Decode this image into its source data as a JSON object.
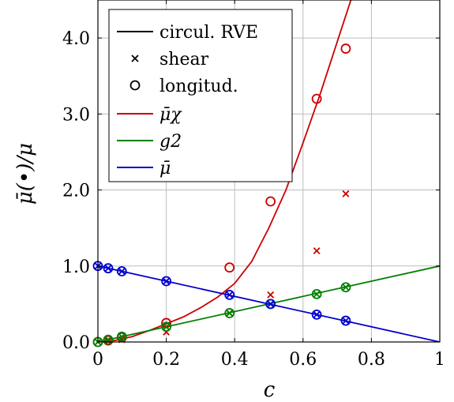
{
  "chart_data": {
    "type": "line",
    "xlabel": "c",
    "ylabel": "μ̄(•)/μ",
    "xlim": [
      0,
      1
    ],
    "ylim": [
      0,
      4.5
    ],
    "xticks": [
      {
        "value": 0,
        "label": "0"
      },
      {
        "value": 0.2,
        "label": "0.2"
      },
      {
        "value": 0.4,
        "label": "0.4"
      },
      {
        "value": 0.6,
        "label": "0.6"
      },
      {
        "value": 0.8,
        "label": "0.8"
      },
      {
        "value": 1,
        "label": "1"
      }
    ],
    "yticks": [
      {
        "value": 0,
        "label": "0.0"
      },
      {
        "value": 1,
        "label": "1.0"
      },
      {
        "value": 2,
        "label": "2.0"
      },
      {
        "value": 3,
        "label": "3.0"
      },
      {
        "value": 4,
        "label": "4.0"
      }
    ],
    "grid": true,
    "legend_position": "top-left",
    "legend": [
      {
        "label": "circul. RVE",
        "marker": "line",
        "color": "#000000"
      },
      {
        "label": "shear",
        "marker": "cross",
        "color": "#000000"
      },
      {
        "label": "longitud.",
        "marker": "circle",
        "color": "#000000"
      },
      {
        "label": "μ̄χ",
        "marker": "line",
        "color": "#cc0000"
      },
      {
        "label": "g2",
        "marker": "line",
        "color": "#008000"
      },
      {
        "label": "μ̄",
        "marker": "line",
        "color": "#0000cc"
      }
    ],
    "series": [
      {
        "key": "mu_chi",
        "name": "μ̄χ",
        "color": "#cc0000",
        "x": [
          0,
          0.05,
          0.1,
          0.15,
          0.2,
          0.25,
          0.3,
          0.35,
          0.4,
          0.45,
          0.5,
          0.55,
          0.6,
          0.65,
          0.7,
          0.74
        ],
        "y": [
          0,
          0.02,
          0.07,
          0.15,
          0.24,
          0.33,
          0.45,
          0.59,
          0.77,
          1.06,
          1.5,
          2.0,
          2.62,
          3.26,
          3.95,
          4.5
        ],
        "shear": {
          "x": [
            0,
            0.03,
            0.07,
            0.2,
            0.385,
            0.505,
            0.64,
            0.725
          ],
          "y": [
            0,
            0.01,
            0.03,
            0.13,
            0.38,
            0.62,
            1.2,
            1.95
          ]
        },
        "longitudinal": {
          "x": [
            0,
            0.03,
            0.07,
            0.2,
            0.385,
            0.505,
            0.64,
            0.725
          ],
          "y": [
            0,
            0.02,
            0.06,
            0.25,
            0.98,
            1.85,
            3.2,
            3.86
          ]
        }
      },
      {
        "key": "g2",
        "name": "g2",
        "color": "#008000",
        "x": [
          0,
          1
        ],
        "y": [
          0,
          1
        ],
        "shear": {
          "x": [
            0,
            0.03,
            0.07,
            0.2,
            0.385,
            0.505,
            0.64,
            0.725
          ],
          "y": [
            0,
            0.03,
            0.07,
            0.2,
            0.38,
            0.5,
            0.63,
            0.72
          ]
        },
        "longitudinal": {
          "x": [
            0,
            0.03,
            0.07,
            0.2,
            0.385,
            0.505,
            0.64,
            0.725
          ],
          "y": [
            0,
            0.03,
            0.07,
            0.2,
            0.38,
            0.5,
            0.63,
            0.72
          ]
        }
      },
      {
        "key": "mu_bar",
        "name": "μ̄",
        "color": "#0000cc",
        "x": [
          0,
          1
        ],
        "y": [
          1,
          0
        ],
        "shear": {
          "x": [
            0,
            0.03,
            0.07,
            0.2,
            0.385,
            0.505,
            0.64,
            0.725
          ],
          "y": [
            1,
            0.97,
            0.93,
            0.8,
            0.62,
            0.5,
            0.36,
            0.28
          ]
        },
        "longitudinal": {
          "x": [
            0,
            0.03,
            0.07,
            0.2,
            0.385,
            0.505,
            0.64,
            0.725
          ],
          "y": [
            1,
            0.97,
            0.93,
            0.8,
            0.62,
            0.5,
            0.36,
            0.28
          ]
        }
      }
    ]
  }
}
